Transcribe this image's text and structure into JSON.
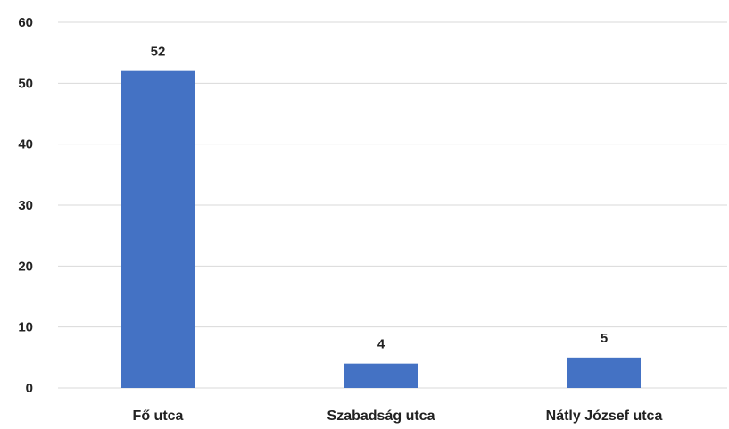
{
  "chart_data": {
    "type": "bar",
    "title": "",
    "xlabel": "",
    "ylabel": "",
    "categories": [
      "Fő utca",
      "Szabadság utca",
      "Nátly József utca"
    ],
    "series": [
      {
        "values": [
          52,
          4,
          5
        ]
      }
    ],
    "data_labels": [
      "52",
      "4",
      "5"
    ],
    "ylim": [
      0,
      60
    ],
    "yticks": [
      0,
      10,
      20,
      30,
      40,
      50,
      60
    ],
    "grid": true,
    "legend": "none",
    "colors": {
      "bar": "#4472C4",
      "grid": "#D9D9D9",
      "text": "#222222"
    }
  }
}
